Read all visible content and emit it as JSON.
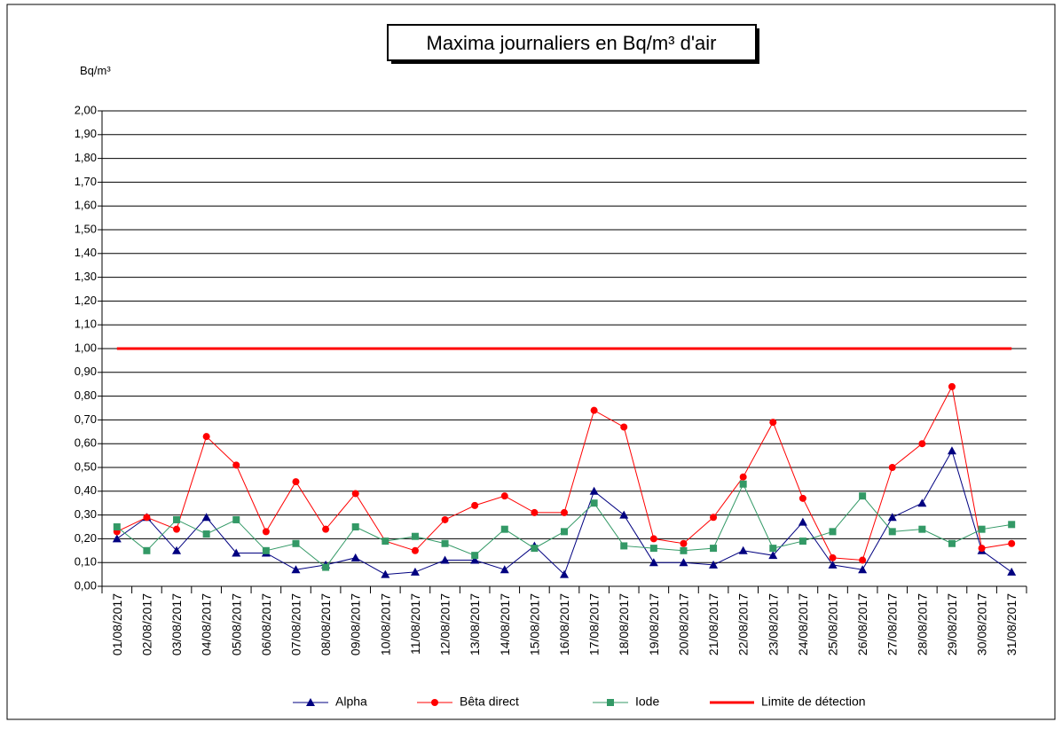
{
  "chart_data": {
    "type": "line",
    "title": "Maxima journaliers en Bq/m³ d'air",
    "y_label": "Bq/m³",
    "categories": [
      "01/08/2017",
      "02/08/2017",
      "03/08/2017",
      "04/08/2017",
      "05/08/2017",
      "06/08/2017",
      "07/08/2017",
      "08/08/2017",
      "09/08/2017",
      "10/08/2017",
      "11/08/2017",
      "12/08/2017",
      "13/08/2017",
      "14/08/2017",
      "15/08/2017",
      "16/08/2017",
      "17/08/2017",
      "18/08/2017",
      "19/08/2017",
      "20/08/2017",
      "21/08/2017",
      "22/08/2017",
      "23/08/2017",
      "24/08/2017",
      "25/08/2017",
      "26/08/2017",
      "27/08/2017",
      "28/08/2017",
      "29/08/2017",
      "30/08/2017",
      "31/08/2017"
    ],
    "series": [
      {
        "name": "Alpha",
        "color": "#000080",
        "marker": "triangle",
        "line_width": 1,
        "values": [
          0.2,
          0.29,
          0.15,
          0.29,
          0.14,
          0.14,
          0.07,
          0.09,
          0.12,
          0.05,
          0.06,
          0.11,
          0.11,
          0.07,
          0.17,
          0.05,
          0.4,
          0.3,
          0.1,
          0.1,
          0.09,
          0.15,
          0.13,
          0.27,
          0.09,
          0.07,
          0.29,
          0.35,
          0.57,
          0.15,
          0.06
        ]
      },
      {
        "name": "Bêta direct",
        "color": "#ff0000",
        "marker": "circle",
        "line_width": 1,
        "values": [
          0.23,
          0.29,
          0.24,
          0.63,
          0.51,
          0.23,
          0.44,
          0.24,
          0.39,
          0.19,
          0.15,
          0.28,
          0.34,
          0.38,
          0.31,
          0.31,
          0.74,
          0.67,
          0.2,
          0.18,
          0.29,
          0.46,
          0.69,
          0.37,
          0.12,
          0.11,
          0.5,
          0.6,
          0.84,
          0.16,
          0.18
        ]
      },
      {
        "name": "Iode",
        "color": "#339966",
        "marker": "square",
        "line_width": 1,
        "values": [
          0.25,
          0.15,
          0.28,
          0.22,
          0.28,
          0.15,
          0.18,
          0.08,
          0.25,
          0.19,
          0.21,
          0.18,
          0.13,
          0.24,
          0.16,
          0.23,
          0.35,
          0.17,
          0.16,
          0.15,
          0.16,
          0.43,
          0.16,
          0.19,
          0.23,
          0.38,
          0.23,
          0.24,
          0.18,
          0.24,
          0.26
        ]
      },
      {
        "name": "Limite de détection",
        "color": "#ff0000",
        "marker": null,
        "line_width": 3,
        "values": [
          1,
          1,
          1,
          1,
          1,
          1,
          1,
          1,
          1,
          1,
          1,
          1,
          1,
          1,
          1,
          1,
          1,
          1,
          1,
          1,
          1,
          1,
          1,
          1,
          1,
          1,
          1,
          1,
          1,
          1,
          1
        ]
      }
    ],
    "ylim": [
      0,
      2
    ],
    "yticks": [
      {
        "value": 0,
        "label": "0,00"
      },
      {
        "value": 0.1,
        "label": "0,10"
      },
      {
        "value": 0.2,
        "label": "0,20"
      },
      {
        "value": 0.3,
        "label": "0,30"
      },
      {
        "value": 0.4,
        "label": "0,40"
      },
      {
        "value": 0.5,
        "label": "0,50"
      },
      {
        "value": 0.6,
        "label": "0,60"
      },
      {
        "value": 0.7,
        "label": "0,70"
      },
      {
        "value": 0.8,
        "label": "0,80"
      },
      {
        "value": 0.9,
        "label": "0,90"
      },
      {
        "value": 1,
        "label": "1,00"
      },
      {
        "value": 1.1,
        "label": "1,10"
      },
      {
        "value": 1.2,
        "label": "1,20"
      },
      {
        "value": 1.3,
        "label": "1,30"
      },
      {
        "value": 1.4,
        "label": "1,40"
      },
      {
        "value": 1.5,
        "label": "1,50"
      },
      {
        "value": 1.6,
        "label": "1,60"
      },
      {
        "value": 1.7,
        "label": "1,70"
      },
      {
        "value": 1.8,
        "label": "1,80"
      },
      {
        "value": 1.9,
        "label": "1,90"
      },
      {
        "value": 2,
        "label": "2,00"
      }
    ],
    "grid": true,
    "legend": "bottom"
  }
}
